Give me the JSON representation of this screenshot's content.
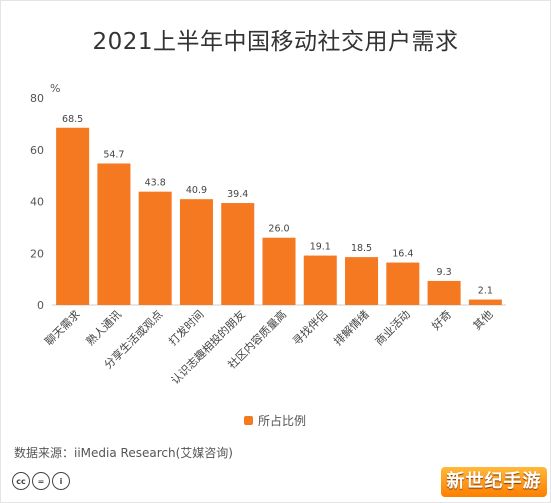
{
  "title": "2021上半年中国移动社交用户需求",
  "chart_data": {
    "type": "bar",
    "title": "2021上半年中国移动社交用户需求",
    "ylabel": "%",
    "ylim": [
      0,
      80
    ],
    "yticks": [
      0,
      20,
      40,
      60,
      80
    ],
    "grid": false,
    "legend_position": "bottom",
    "categories": [
      "聊天需求",
      "熟人通讯",
      "分享生活或观点",
      "打发时间",
      "认识志趣相投的朋友",
      "社区内容质量高",
      "寻找伴侣",
      "排解情绪",
      "商业活动",
      "好奇",
      "其他"
    ],
    "series": [
      {
        "name": "所占比例",
        "color": "#f47920",
        "values": [
          68.5,
          54.7,
          43.8,
          40.9,
          39.4,
          26.0,
          19.1,
          18.5,
          16.4,
          9.3,
          2.1
        ],
        "labels": [
          "68.5",
          "54.7",
          "43.8",
          "40.9",
          "39.4",
          "26.0",
          "19.1",
          "18.5",
          "16.4",
          "9.3",
          "2.1"
        ]
      }
    ]
  },
  "legend": {
    "label": "所占比例",
    "color": "#f47920"
  },
  "source": "数据来源：iiMedia Research(艾媒咨询)",
  "license_icons": [
    "cc",
    "=",
    "i"
  ],
  "watermark": "新世纪手游"
}
